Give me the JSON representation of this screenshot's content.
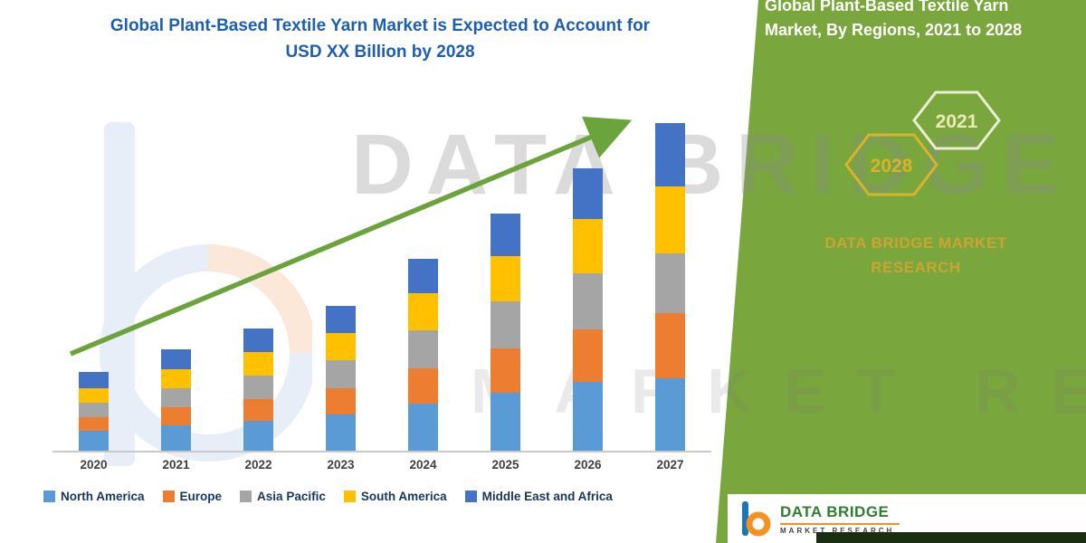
{
  "header": {
    "title_line1": "Global Plant-Based Textile Yarn Market is Expected to Account for",
    "title_line2": "USD XX Billion by 2028"
  },
  "chart_data": {
    "type": "bar",
    "stacked": true,
    "title": "Global Plant-Based Textile Yarn Market is Expected to Account for USD XX Billion by 2028",
    "categories": [
      "2020",
      "2021",
      "2022",
      "2023",
      "2024",
      "2025",
      "2026",
      "2027"
    ],
    "series": [
      {
        "name": "North America",
        "color": "#5B9BD5",
        "values": [
          22,
          28,
          33,
          40,
          52,
          64,
          76,
          80
        ]
      },
      {
        "name": "Europe",
        "color": "#ED7D31",
        "values": [
          15,
          20,
          24,
          29,
          39,
          49,
          58,
          72
        ]
      },
      {
        "name": "Asia Pacific",
        "color": "#A5A5A5",
        "values": [
          16,
          21,
          26,
          31,
          42,
          52,
          62,
          66
        ]
      },
      {
        "name": "South America",
        "color": "#FFC000",
        "values": [
          16,
          21,
          26,
          30,
          41,
          50,
          60,
          74
        ]
      },
      {
        "name": "Middle East and Africa",
        "color": "#4472C4",
        "values": [
          18,
          22,
          26,
          30,
          38,
          47,
          56,
          70
        ]
      }
    ],
    "xlabel": "",
    "ylabel": "",
    "ylim": [
      0,
      400
    ],
    "gridlines": false,
    "legend_position": "bottom",
    "annotations": [
      "green upward trend arrow across bars"
    ],
    "note": "Actual magnitudes are not labeled in the figure (USD XX Billion); series values are relative units estimated from bar heights."
  },
  "side_panel": {
    "title": "Global Plant-Based Textile Yarn Market, By Regions, 2021 to 2028",
    "hexagon_years": [
      "2028",
      "2021"
    ],
    "brand_text": "DATA BRIDGE MARKET RESEARCH",
    "bg_color": "#7AA63E",
    "accent_color": "#D9B428"
  },
  "footer_logo": {
    "title": "DATA BRIDGE",
    "subtitle": "MARKET RESEARCH"
  },
  "watermark": {
    "line1": "DATA BRIDGE",
    "line2": "MARKET RESEARCH"
  }
}
